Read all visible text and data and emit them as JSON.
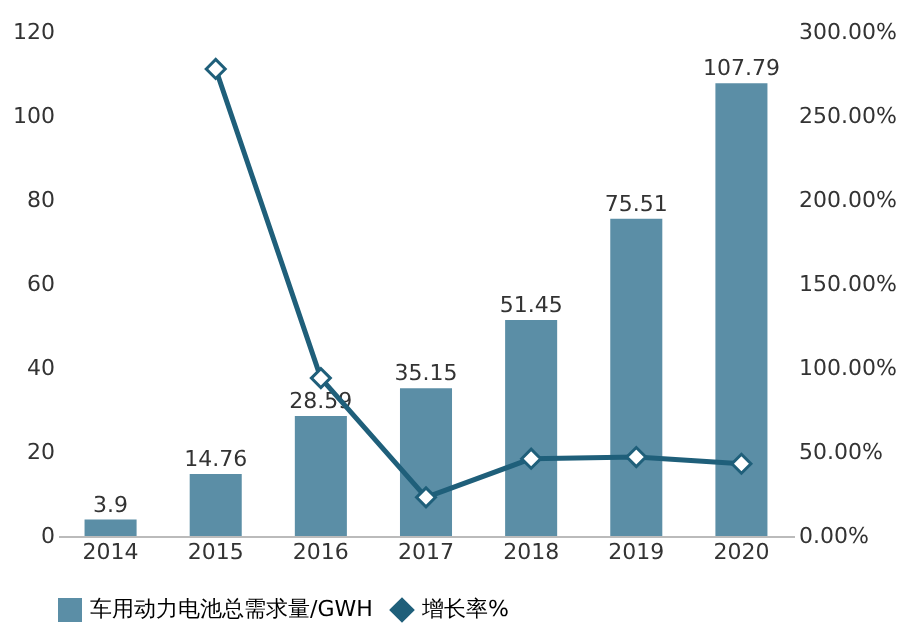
{
  "chart_data": {
    "type": "bar",
    "categories": [
      "2014",
      "2015",
      "2016",
      "2017",
      "2018",
      "2019",
      "2020"
    ],
    "series": [
      {
        "name": "车用动力电池总需求量/GWH",
        "color": "#5b8ea6",
        "values": [
          3.9,
          14.76,
          28.59,
          35.15,
          51.45,
          75.51,
          107.79
        ],
        "value_labels": [
          "3.9",
          "14.76",
          "28.59",
          "35.15",
          "51.45",
          "75.51",
          "107.79"
        ]
      },
      {
        "name": "增长率%",
        "type": "line",
        "axis": "y2",
        "color": "#1f5f7a",
        "values": [
          null,
          278,
          94,
          23,
          46,
          47,
          43
        ]
      }
    ],
    "ylim": [
      0,
      120
    ],
    "yticks": [
      0,
      20,
      40,
      60,
      80,
      100,
      120
    ],
    "y2lim": [
      0,
      300
    ],
    "y2ticks": [
      {
        "value": 0,
        "label": "0.00%"
      },
      {
        "value": 50,
        "label": "50.00%"
      },
      {
        "value": 100,
        "label": "100.00%"
      },
      {
        "value": 150,
        "label": "150.00%"
      },
      {
        "value": 200,
        "label": "200.00%"
      },
      {
        "value": 250,
        "label": "250.00%"
      },
      {
        "value": 300,
        "label": "300.00%"
      }
    ],
    "legend": "bottom",
    "marker": "diamond",
    "line_style": "solid",
    "grid": false
  }
}
